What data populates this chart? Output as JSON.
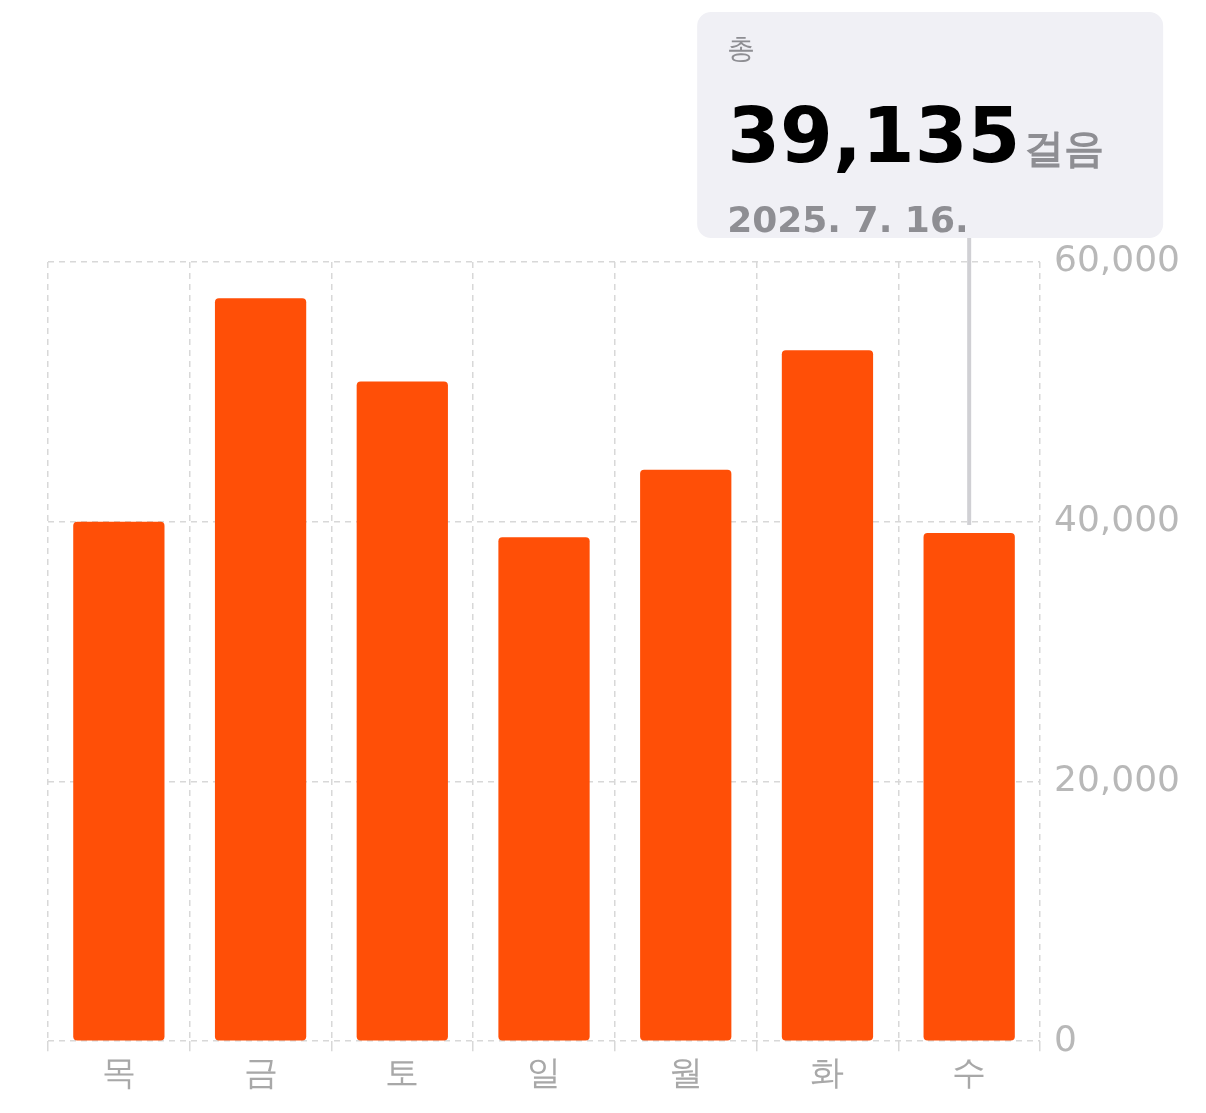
{
  "chart_data": {
    "type": "bar",
    "categories": [
      "목",
      "금",
      "토",
      "일",
      "월",
      "화",
      "수"
    ],
    "values": [
      40000,
      57200,
      50800,
      38800,
      44000,
      53200,
      39135
    ],
    "color": "#ff4f07",
    "ylim": [
      0,
      60000
    ],
    "yticks": [
      {
        "value": 0,
        "label": "0"
      },
      {
        "value": 20000,
        "label": "20,000"
      },
      {
        "value": 40000,
        "label": "40,000"
      },
      {
        "value": 60000,
        "label": "60,000"
      }
    ],
    "grid": true,
    "legend": false,
    "annotations": [
      "총",
      "39,135걸음",
      "2025. 7. 16."
    ]
  }
}
